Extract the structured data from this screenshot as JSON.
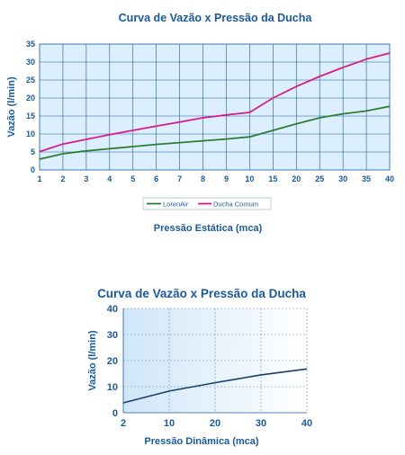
{
  "chart_data": [
    {
      "type": "line",
      "title": "Curva de Vazão x Pressão da Ducha",
      "xlabel": "Pressão Estática (mca)",
      "ylabel": "Vazão (l/min)",
      "x": [
        "1",
        "2",
        "3",
        "4",
        "5",
        "6",
        "7",
        "8",
        "9",
        "10",
        "15",
        "20",
        "25",
        "30",
        "35",
        "40"
      ],
      "xticks": [
        "1",
        "2",
        "3",
        "4",
        "5",
        "6",
        "7",
        "8",
        "9",
        "10",
        "15",
        "20",
        "25",
        "30",
        "35",
        "40"
      ],
      "yticks": [
        "0",
        "5",
        "10",
        "15",
        "20",
        "25",
        "30",
        "35"
      ],
      "ylim": [
        0,
        35
      ],
      "grid": true,
      "legend_position": "bottom-center",
      "series": [
        {
          "name": "LorenAir",
          "color": "#2e7d32",
          "values": [
            3,
            4.5,
            5.3,
            5.9,
            6.5,
            7.1,
            7.6,
            8.1,
            8.6,
            9.2,
            11,
            12.8,
            14.5,
            15.6,
            16.4,
            17.7
          ]
        },
        {
          "name": "Ducha Comum",
          "color": "#d81b8c",
          "values": [
            5.1,
            7.2,
            8.5,
            9.8,
            11,
            12.2,
            13.3,
            14.5,
            15.3,
            16,
            20,
            23.2,
            26,
            28.5,
            30.8,
            32.5
          ]
        }
      ]
    },
    {
      "type": "line",
      "title": "Curva de Vazão x Pressão da Ducha",
      "xlabel": "Pressão Dinâmica (mca)",
      "ylabel": "Vazão (l/min)",
      "x": [
        2,
        10,
        20,
        30,
        40
      ],
      "xticks": [
        "2",
        "10",
        "20",
        "30",
        "40"
      ],
      "yticks": [
        "0",
        "10",
        "20",
        "30",
        "40"
      ],
      "ylim": [
        0,
        40
      ],
      "grid": true,
      "series": [
        {
          "color": "#1a3f6e",
          "values": [
            3.8,
            8.3,
            11.5,
            14.5,
            16.8
          ]
        }
      ]
    }
  ]
}
